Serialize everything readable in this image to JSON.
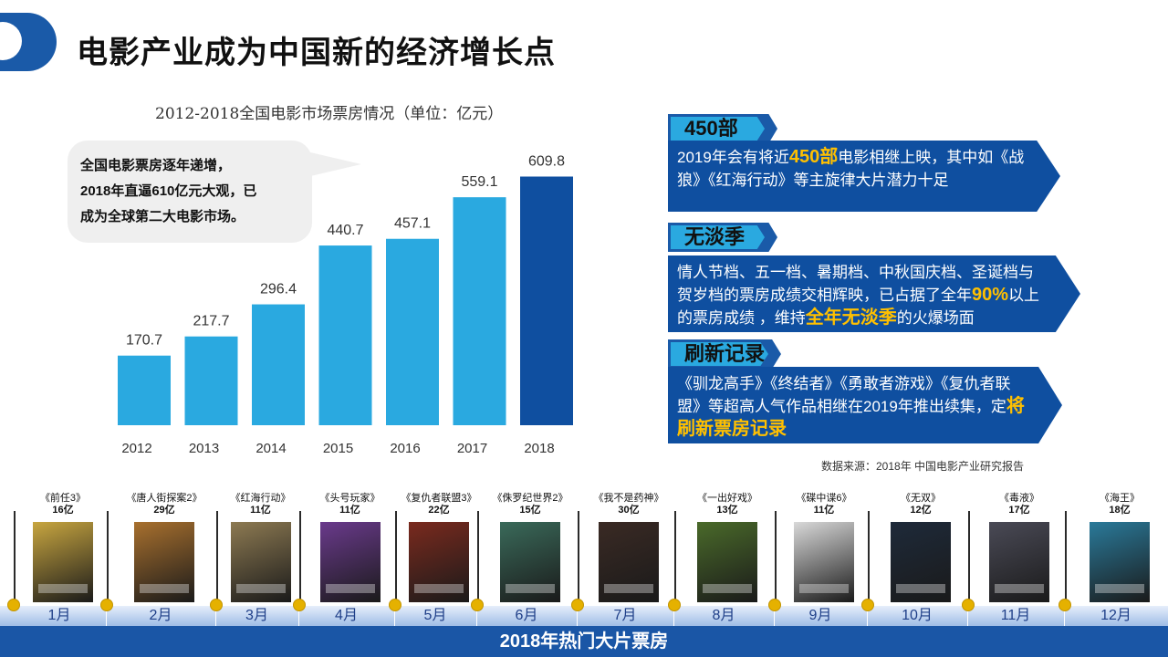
{
  "header": {
    "title": "电影产业成为中国新的经济增长点"
  },
  "chart_data": {
    "type": "bar",
    "title": "2012-2018全国电影市场票房情况（单位：亿元）",
    "categories": [
      "2012",
      "2013",
      "2014",
      "2015",
      "2016",
      "2017",
      "2018"
    ],
    "values": [
      170.7,
      217.7,
      296.4,
      440.7,
      457.1,
      559.1,
      609.8
    ],
    "value_labels": [
      "170.7",
      "217.7",
      "296.4",
      "440.7",
      "457.1",
      "559.1",
      "609.8"
    ],
    "ylim": [
      0,
      640
    ],
    "grid": false,
    "colors": {
      "default": "#2aa9e0",
      "highlight": "#0f4fa0"
    },
    "highlight_index": 6
  },
  "bubble": {
    "lines": [
      "全国电影票房逐年递增，",
      "2018年直逼610亿元大观，已",
      "成为全球第二大电影市场。"
    ]
  },
  "panels": [
    {
      "tag": "450部",
      "parts": [
        {
          "t": "2019年会有将近",
          "h": false
        },
        {
          "t": "450部",
          "h": true
        },
        {
          "t": "电影相继上映，其中如《战狼》《红海行动》等主旋律大片潜力十足",
          "h": false
        }
      ]
    },
    {
      "tag": "无淡季",
      "parts": [
        {
          "t": "情人节档、五一档、暑期档、中秋国庆档、圣诞档与贺岁档的票房成绩交相辉映，已占据了全年",
          "h": false
        },
        {
          "t": "90%",
          "h": true
        },
        {
          "t": "以上的票房成绩 ，维持",
          "h": false
        },
        {
          "t": "全年无淡季",
          "h": true
        },
        {
          "t": "的火爆场面",
          "h": false
        }
      ]
    },
    {
      "tag": "刷新记录",
      "parts": [
        {
          "t": "《驯龙高手》《终结者》《勇敢者游戏》《复仇者联盟》等超高人气作品相继在2019年推出续集，定",
          "h": false
        },
        {
          "t": "将刷新票房记录",
          "h": true
        }
      ]
    }
  ],
  "source": "数据来源：2018年 中国电影产业研究报告",
  "timeline": {
    "title": "2018年热门大片票房",
    "months": [
      "1月",
      "2月",
      "3月",
      "4月",
      "5月",
      "6月",
      "7月",
      "8月",
      "9月",
      "10月",
      "11月",
      "12月"
    ],
    "movies": [
      {
        "name": "《前任3》",
        "gross": "16亿",
        "color": "#c8a640"
      },
      {
        "name": "《唐人街探案2》",
        "gross": "29亿",
        "color": "#a8702e"
      },
      {
        "name": "《红海行动》",
        "gross": "11亿",
        "color": "#8d7a52"
      },
      {
        "name": "《头号玩家》",
        "gross": "11亿",
        "color": "#6a3a8c"
      },
      {
        "name": "《复仇者联盟3》",
        "gross": "22亿",
        "color": "#7a2a1e"
      },
      {
        "name": "《侏罗纪世界2》",
        "gross": "15亿",
        "color": "#3a6a5a"
      },
      {
        "name": "《我不是药神》",
        "gross": "30亿",
        "color": "#3a2a24"
      },
      {
        "name": "《一出好戏》",
        "gross": "13亿",
        "color": "#4a6a2a"
      },
      {
        "name": "《碟中谍6》",
        "gross": "11亿",
        "color": "#d9d9d9"
      },
      {
        "name": "《无双》",
        "gross": "12亿",
        "color": "#1e2a3a"
      },
      {
        "name": "《毒液》",
        "gross": "17亿",
        "color": "#4a4a56"
      },
      {
        "name": "《海王》",
        "gross": "18亿",
        "color": "#2a7a9a"
      }
    ]
  }
}
